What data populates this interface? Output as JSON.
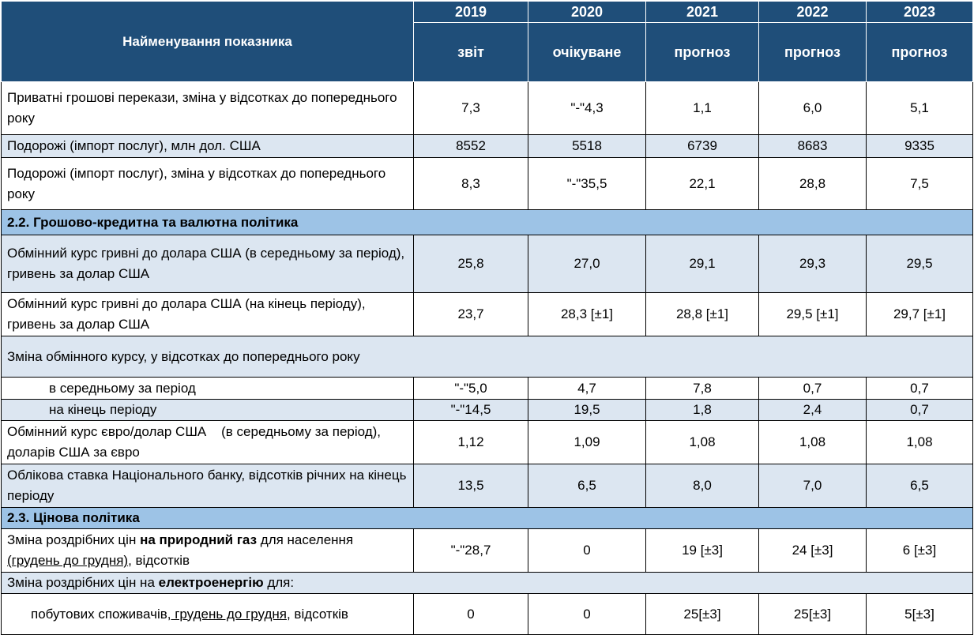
{
  "header": {
    "name_label": "Найменування показника",
    "years": [
      "2019",
      "2020",
      "2021",
      "2022",
      "2023"
    ],
    "kinds": [
      "звіт",
      "очікуване",
      "прогноз",
      "прогноз",
      "прогноз"
    ]
  },
  "rows": {
    "r1": {
      "label": "Приватні грошові перекази, зміна у відсотках до попереднього року",
      "values": [
        "7,3",
        "\"-\"4,3",
        "1,1",
        "6,0",
        "5,1"
      ]
    },
    "r2": {
      "label": "Подорожі (імпорт послуг), млн дол. США",
      "values": [
        "8552",
        "5518",
        "6739",
        "8683",
        "9335"
      ]
    },
    "r3": {
      "label": "Подорожі (імпорт послуг), зміна у відсотках до попереднього року",
      "values": [
        "8,3",
        "\"-\"35,5",
        "22,1",
        "28,8",
        "7,5"
      ]
    },
    "s22": {
      "label": "2.2. Грошово-кредитна та валютна політика"
    },
    "r4": {
      "label": "Обмінний курс гривні до долара США (в середньому за період), гривень за долар США",
      "values": [
        "25,8",
        "27,0",
        "29,1",
        "29,3",
        "29,5"
      ]
    },
    "r5": {
      "label": "Обмінний курс гривні до долара США (на кінець періоду), гривень за долар США",
      "values": [
        "23,7",
        "28,3 [±1]",
        "28,8 [±1]",
        "29,5 [±1]",
        "29,7 [±1]"
      ]
    },
    "r6": {
      "label": "Зміна обмінного курсу, у відсотках до попереднього року"
    },
    "r7": {
      "label": "в середньому за період",
      "values": [
        "\"-\"5,0",
        "4,7",
        "7,8",
        "0,7",
        "0,7"
      ]
    },
    "r8": {
      "label": "на кінець періоду",
      "values": [
        "\"-\"14,5",
        "19,5",
        "1,8",
        "2,4",
        "0,7"
      ]
    },
    "r9": {
      "label": "Обмінний курс євро/долар США    (в середньому за період), доларів США за євро",
      "values": [
        "1,12",
        "1,09",
        "1,08",
        "1,08",
        "1,08"
      ]
    },
    "r10": {
      "label": "Облікова ставка Національного банку, відсотків річних на кінець періоду",
      "values": [
        "13,5",
        "6,5",
        "8,0",
        "7,0",
        "6,5"
      ]
    },
    "s23": {
      "label": "2.3. Цінова політика"
    },
    "r11": {
      "label_pre": "Зміна роздрібних цін ",
      "label_bold": "на природний газ",
      "label_mid": " для населення ",
      "label_u": "(грудень до грудня)",
      "label_post": ", відсотків",
      "values": [
        "\"-\"28,7",
        "0",
        "19 [±3]",
        "24 [±3]",
        "6 [±3]"
      ]
    },
    "r12": {
      "label_pre": "Зміна роздрібних цін на ",
      "label_bold": "електроенергію",
      "label_post": " для:"
    },
    "r13": {
      "label_pre": "побутових споживачів,",
      "label_u": " грудень до грудня",
      "label_post": ", відсотків",
      "values": [
        "0",
        "0",
        "25[±3]",
        "25[±3]",
        "5[±3]"
      ]
    }
  }
}
